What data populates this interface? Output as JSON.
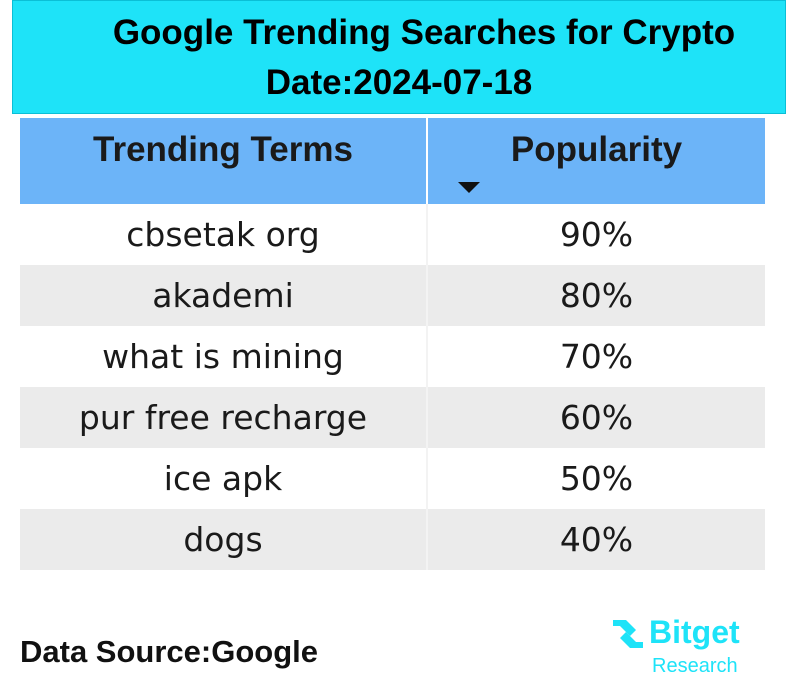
{
  "title": {
    "line1": "Google Trending Searches for Crypto",
    "line2": "Date:2024-07-18"
  },
  "chart_data": {
    "type": "table",
    "columns": [
      "Trending Terms",
      "Popularity"
    ],
    "sorted_by": "Popularity",
    "sort_order": "descending",
    "rows": [
      {
        "term": "cbsetak org",
        "popularity": "90%"
      },
      {
        "term": "akademi",
        "popularity": "80%"
      },
      {
        "term": "what is mining",
        "popularity": "70%"
      },
      {
        "term": "pur free recharge",
        "popularity": "60%"
      },
      {
        "term": "ice apk",
        "popularity": "50%"
      },
      {
        "term": "dogs",
        "popularity": "40%"
      }
    ]
  },
  "footer": {
    "source": "Data Source:Google",
    "logo_word": "Bitget",
    "logo_sub": "Research"
  },
  "colors": {
    "title_bg": "#1ee3f8",
    "header_bg": "#6cb4f8",
    "row_alt": "#ebebeb",
    "brand": "#1ee3f8"
  },
  "icons": {
    "sort": "sort-descending-icon",
    "logo": "bitget-logo-icon"
  }
}
